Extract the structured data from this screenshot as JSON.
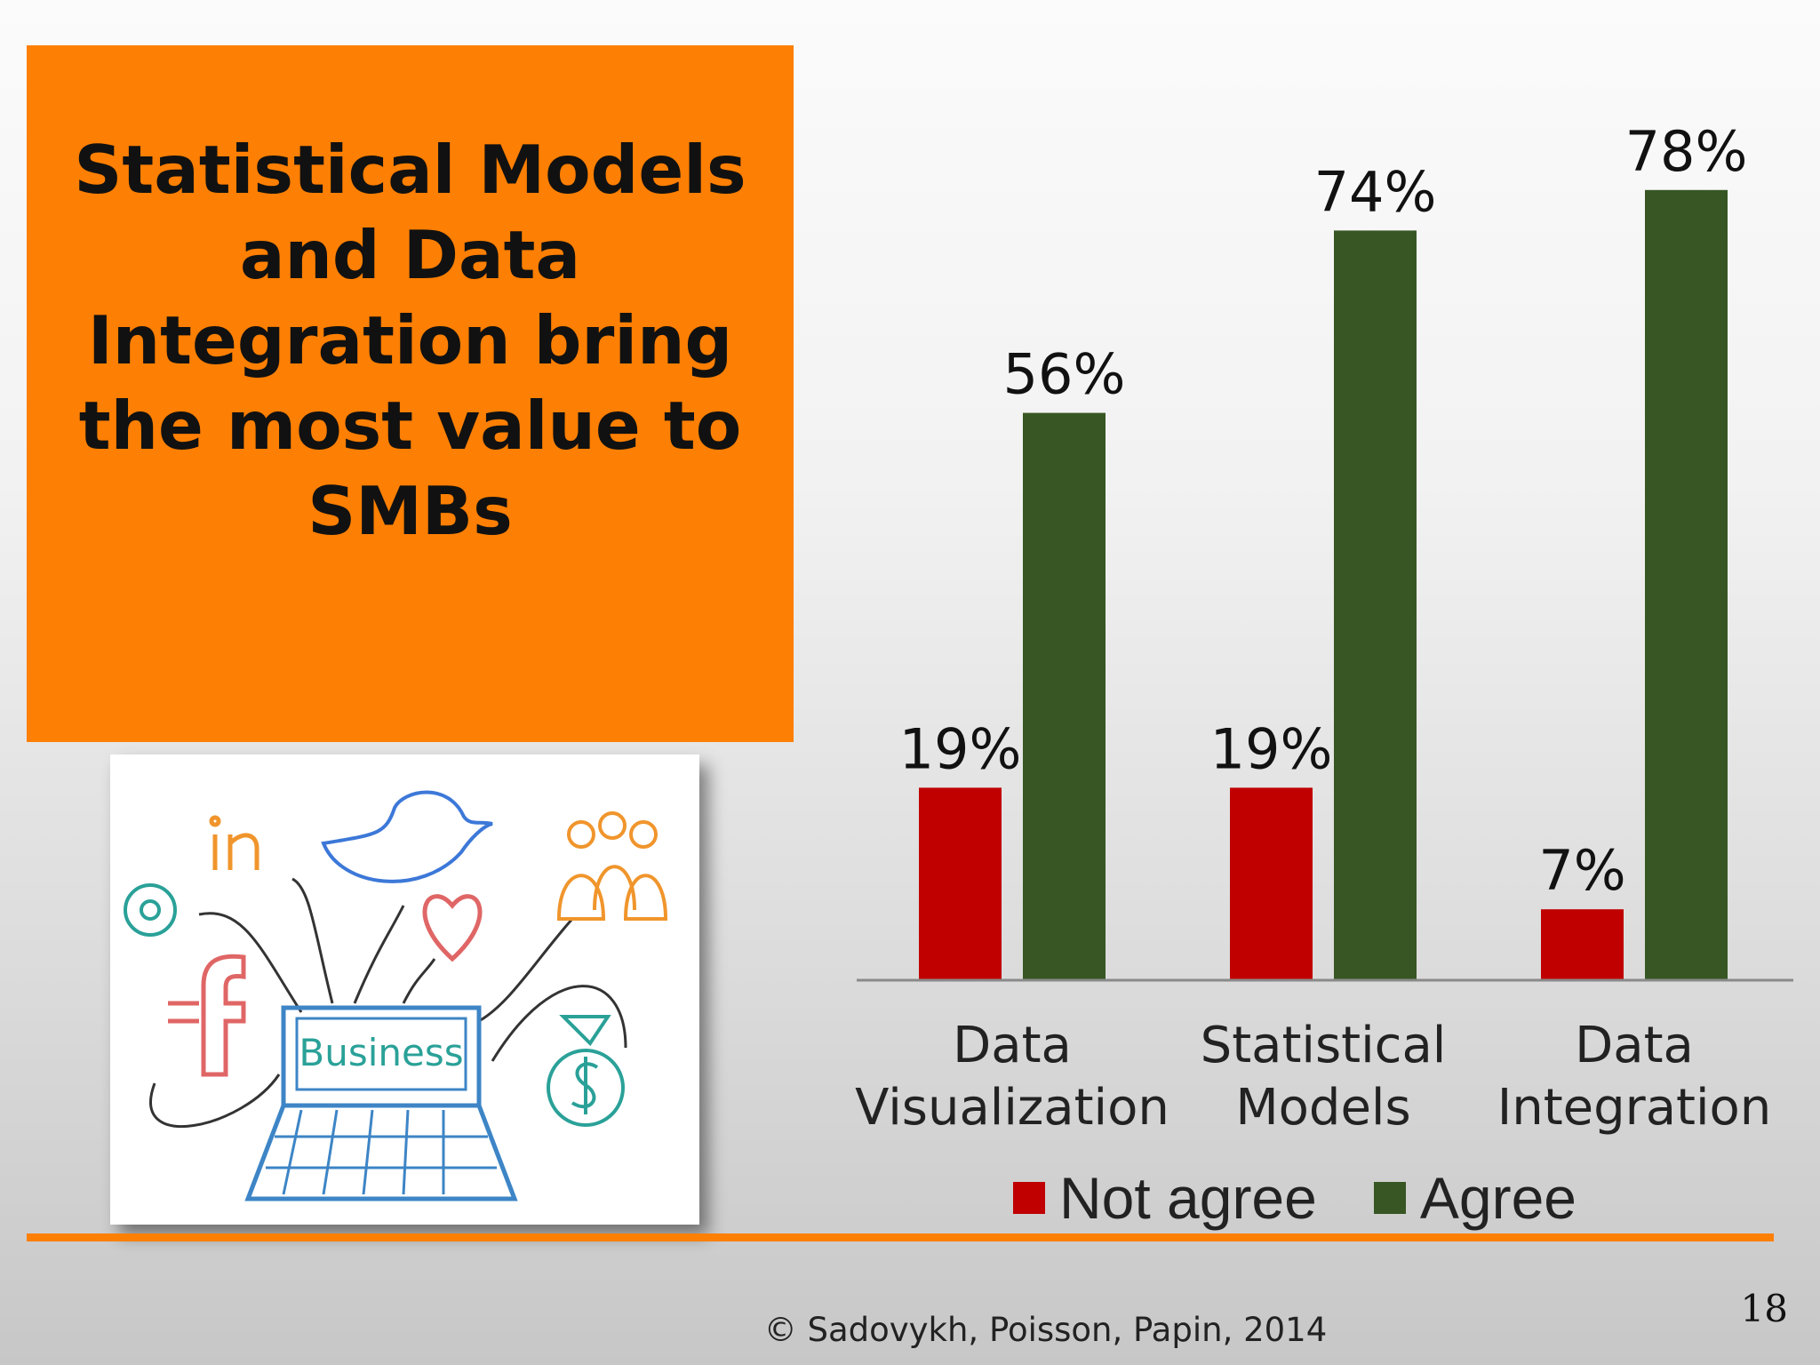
{
  "slide": {
    "title": "Statistical Models and Data Integration bring the most value to SMBs",
    "copyright": "© Sadovykh, Poisson, Papin, 2014",
    "page_number": "18"
  },
  "illustration": {
    "label": "Business",
    "icons": [
      "linkedin-icon",
      "twitter-bird-icon",
      "group-icon",
      "at-sign-icon",
      "heart-icon",
      "facebook-icon",
      "money-bag-icon",
      "laptop-icon"
    ]
  },
  "colors": {
    "accent": "#fd7f03",
    "not_agree": "#c00000",
    "agree": "#375623"
  },
  "chart_data": {
    "type": "bar",
    "categories": [
      "Data Visualization",
      "Statistical Models",
      "Data Integration"
    ],
    "category_lines": [
      [
        "Data",
        "Visualization"
      ],
      [
        "Statistical",
        "Models"
      ],
      [
        "Data",
        "Integration"
      ]
    ],
    "series": [
      {
        "name": "Not agree",
        "values": [
          19,
          19,
          7
        ],
        "labels": [
          "19%",
          "19%",
          "7%"
        ],
        "color": "#c00000"
      },
      {
        "name": "Agree",
        "values": [
          56,
          74,
          78
        ],
        "labels": [
          "56%",
          "74%",
          "78%"
        ],
        "color": "#375623"
      }
    ],
    "ylim": [
      0,
      80
    ],
    "grid": false,
    "legend": "bottom",
    "unit": "%"
  }
}
